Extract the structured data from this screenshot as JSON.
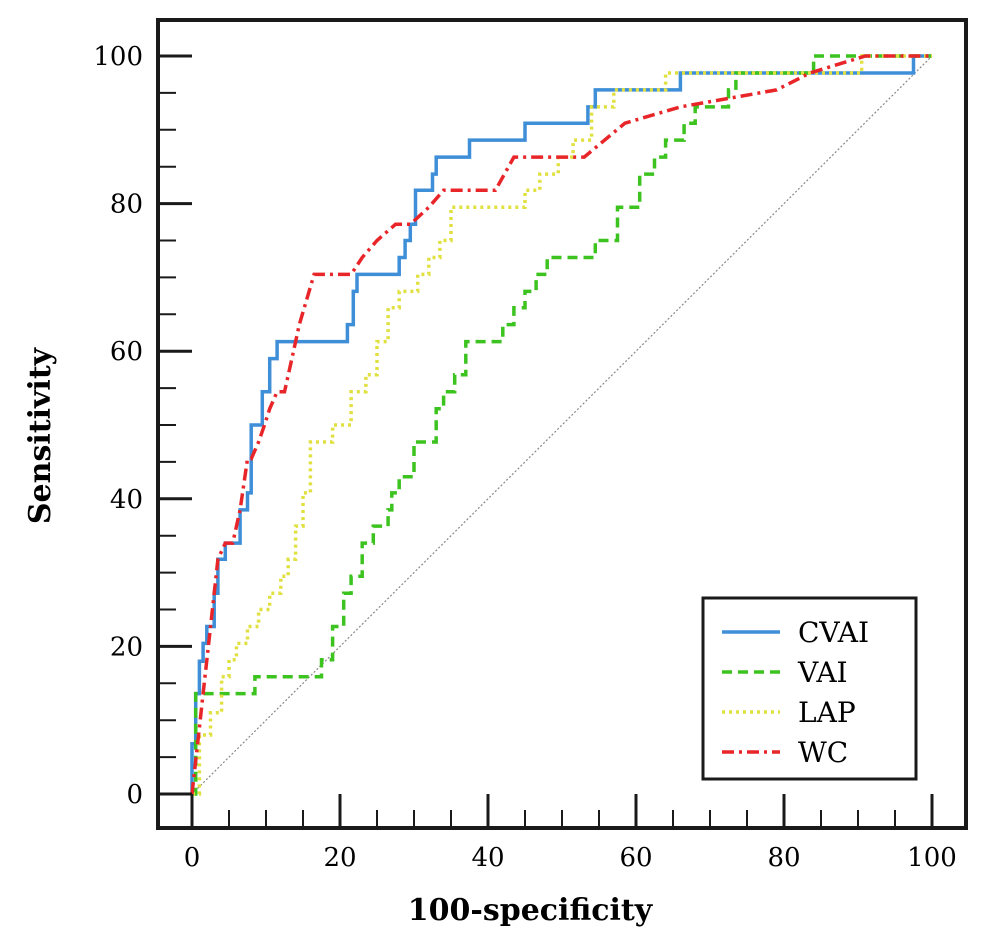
{
  "chart_data": {
    "type": "line",
    "title": "",
    "xlabel": "100-specificity",
    "ylabel": "Sensitivity",
    "xlim": [
      0,
      100
    ],
    "ylim": [
      0,
      100
    ],
    "xticks": [
      "0",
      "20",
      "40",
      "60",
      "80",
      "100"
    ],
    "yticks": [
      "0",
      "20",
      "40",
      "60",
      "80",
      "100"
    ],
    "grid": false,
    "legend_position": "bottom-right",
    "reference_line": {
      "x": [
        0,
        100
      ],
      "y": [
        0,
        100
      ],
      "color": "#888888"
    },
    "series": [
      {
        "name": "CVAI",
        "color": "#3f8fd8",
        "dash": "solid",
        "x": [
          0,
          0,
          0.5,
          0.5,
          1.0,
          1.0,
          1.5,
          1.5,
          2.0,
          2.0,
          3.0,
          3.0,
          3.5,
          3.5,
          4.5,
          4.5,
          6.5,
          6.5,
          7.5,
          7.5,
          8.0,
          8.0,
          9.5,
          9.5,
          10.5,
          10.5,
          11.5,
          11.5,
          12.5,
          12.5,
          21.0,
          21.0,
          21.8,
          21.8,
          22.3,
          22.3,
          28.0,
          28.0,
          28.8,
          28.8,
          29.5,
          29.5,
          30.2,
          30.2,
          30.8,
          30.8,
          32.5,
          32.5,
          33.0,
          33.0,
          37.5,
          37.5,
          45.0,
          45.0,
          53.5,
          53.5,
          54.5,
          54.5,
          66.0,
          66.0,
          70.5,
          70.5,
          97.5,
          97.5,
          100
        ],
        "y": [
          0,
          6.8,
          6.8,
          13.6,
          13.6,
          18.0,
          18.0,
          20.4,
          20.4,
          22.7,
          22.7,
          27.2,
          27.2,
          31.8,
          31.8,
          34.0,
          34.0,
          38.5,
          38.5,
          40.8,
          40.8,
          50.0,
          50.0,
          54.5,
          54.5,
          59.0,
          59.0,
          61.3,
          61.3,
          61.3,
          61.3,
          63.6,
          63.6,
          68.1,
          68.1,
          70.4,
          70.4,
          72.7,
          72.7,
          75.0,
          75.0,
          77.2,
          77.2,
          81.8,
          81.8,
          81.8,
          81.8,
          84.0,
          84.0,
          86.3,
          86.3,
          88.6,
          88.6,
          90.9,
          90.9,
          93.1,
          93.1,
          95.4,
          95.4,
          97.7,
          97.7,
          97.7,
          97.7,
          100,
          100
        ]
      },
      {
        "name": "VAI",
        "color": "#3cc31f",
        "dash": "dashed",
        "x": [
          0,
          0.5,
          0.5,
          8.5,
          8.5,
          17.5,
          17.5,
          19.0,
          19.0,
          20.5,
          20.5,
          21.5,
          21.5,
          23.0,
          23.0,
          24.5,
          24.5,
          26.5,
          26.5,
          27.0,
          27.0,
          28.0,
          28.0,
          30.0,
          30.0,
          33.0,
          33.0,
          34.0,
          34.0,
          35.5,
          35.5,
          37.0,
          37.0,
          42.0,
          42.0,
          43.5,
          43.5,
          45.0,
          45.0,
          46.5,
          46.5,
          48.0,
          48.0,
          54.5,
          54.5,
          56.0,
          56.0,
          57.5,
          57.5,
          60.5,
          60.5,
          62.5,
          62.5,
          64.0,
          64.0,
          65.5,
          65.5,
          66.5,
          66.5,
          68.0,
          68.0,
          70.5,
          70.5,
          72.5,
          72.5,
          73.5,
          73.5,
          78.0,
          78.0,
          84.0,
          84.0,
          100
        ],
        "y": [
          0,
          0,
          13.6,
          13.6,
          15.9,
          15.9,
          18.2,
          18.2,
          22.7,
          22.7,
          27.2,
          27.2,
          29.5,
          29.5,
          34.0,
          34.0,
          36.3,
          36.3,
          38.5,
          38.5,
          40.8,
          40.8,
          43.0,
          43.0,
          47.7,
          47.7,
          52.2,
          52.2,
          54.5,
          54.5,
          56.8,
          56.8,
          61.3,
          61.3,
          63.6,
          63.6,
          65.9,
          65.9,
          68.1,
          68.1,
          70.4,
          70.4,
          72.7,
          72.7,
          75.0,
          75.0,
          75.0,
          75.0,
          79.5,
          79.5,
          84.0,
          84.0,
          86.3,
          86.3,
          88.6,
          88.6,
          88.6,
          88.6,
          90.9,
          90.9,
          93.1,
          93.1,
          93.1,
          93.1,
          95.4,
          95.4,
          97.7,
          97.7,
          97.7,
          97.7,
          100,
          100
        ]
      },
      {
        "name": "LAP",
        "color": "#e0e040",
        "dash": "dotted",
        "x": [
          0,
          1.0,
          1.0,
          2.5,
          2.5,
          4.0,
          4.0,
          5.0,
          5.0,
          6.0,
          6.0,
          7.5,
          7.5,
          9.0,
          9.0,
          10.5,
          10.5,
          12.0,
          12.0,
          13.0,
          13.0,
          14.0,
          14.0,
          15.0,
          15.0,
          16.0,
          16.0,
          18.0,
          18.0,
          19.0,
          19.0,
          21.5,
          21.5,
          23.5,
          23.5,
          25.0,
          25.0,
          26.5,
          26.5,
          28.0,
          28.0,
          30.5,
          30.5,
          32.0,
          32.0,
          33.5,
          33.5,
          35.0,
          35.0,
          37.0,
          37.0,
          45.0,
          45.0,
          47.0,
          47.0,
          49.5,
          49.5,
          51.5,
          51.5,
          54.0,
          54.0,
          57.0,
          57.0,
          64.0,
          64.0,
          79.0,
          79.0,
          90.5,
          90.5,
          95.0,
          95.0,
          100
        ],
        "y": [
          0,
          0,
          8.0,
          8.0,
          11.0,
          11.0,
          15.9,
          15.9,
          18.2,
          18.2,
          20.4,
          20.4,
          22.7,
          22.7,
          25.0,
          25.0,
          27.2,
          27.2,
          29.5,
          29.5,
          31.8,
          31.8,
          36.3,
          36.3,
          40.8,
          40.8,
          47.7,
          47.7,
          47.7,
          47.7,
          50.0,
          50.0,
          54.5,
          54.5,
          56.8,
          56.8,
          61.3,
          61.3,
          65.9,
          65.9,
          68.1,
          68.1,
          70.4,
          70.4,
          72.7,
          72.7,
          75.0,
          75.0,
          79.5,
          79.5,
          79.5,
          79.5,
          81.8,
          81.8,
          84.0,
          84.0,
          86.3,
          86.3,
          88.6,
          88.6,
          93.1,
          93.1,
          95.4,
          95.4,
          97.7,
          97.7,
          97.7,
          97.7,
          100,
          100,
          100,
          100
        ]
      },
      {
        "name": "WC",
        "color": "#e8262a",
        "dash": "dashdot",
        "x": [
          0,
          0.5,
          1.0,
          1.5,
          2.0,
          3.0,
          3.5,
          3.5,
          4.5,
          5.5,
          6.5,
          7.5,
          8.0,
          9.0,
          9.8,
          10.5,
          11.5,
          12.5,
          13.5,
          14.5,
          16.5,
          21.5,
          23.0,
          25.0,
          27.5,
          29.5,
          32.0,
          34.0,
          36.5,
          38.0,
          41.0,
          43.5,
          44.5,
          53.0,
          58.5,
          66.0,
          79.0,
          83.5,
          91.0,
          100
        ],
        "y": [
          0,
          4.5,
          9.0,
          13.6,
          18.1,
          27.2,
          31.8,
          31.8,
          34.0,
          34.0,
          38.5,
          45.4,
          45.4,
          47.7,
          50.0,
          52.2,
          54.5,
          54.5,
          59.0,
          63.6,
          70.4,
          70.4,
          72.7,
          75.0,
          77.2,
          77.2,
          79.5,
          81.8,
          81.8,
          81.8,
          81.8,
          86.3,
          86.3,
          86.3,
          90.9,
          93.1,
          95.4,
          97.7,
          100,
          100
        ]
      }
    ]
  }
}
